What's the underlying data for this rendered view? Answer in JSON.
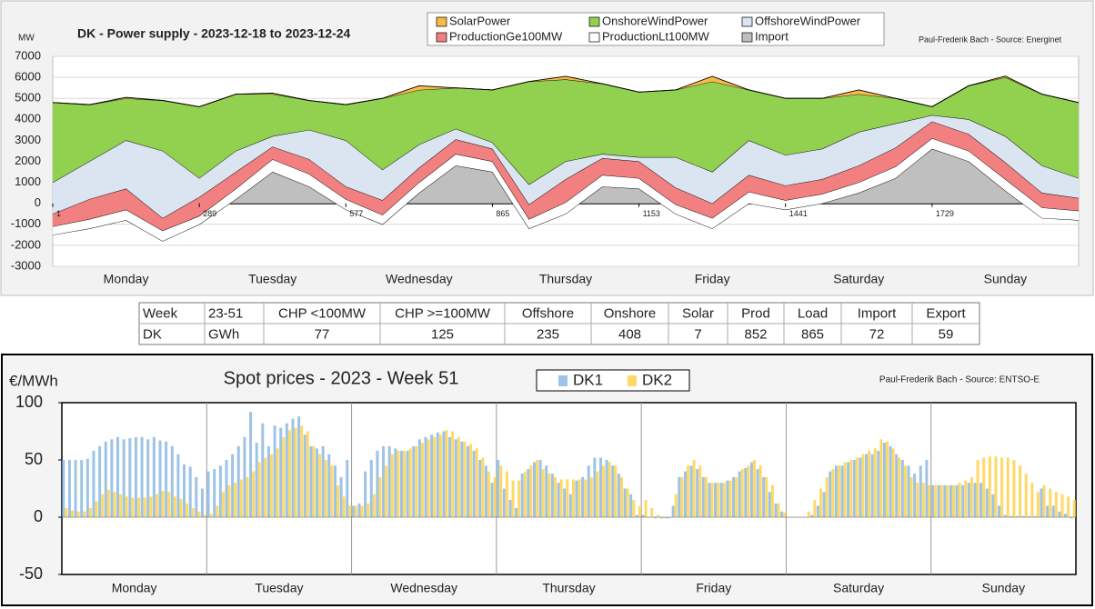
{
  "chart_data": [
    {
      "type": "area",
      "title": "DK - Power supply - 2023-12-18 to 2023-12-24",
      "source": "Paul-Frederik Bach - Source: Energinet",
      "y_label": "MW",
      "x": [
        1,
        73,
        145,
        217,
        289,
        361,
        433,
        505,
        577,
        649,
        721,
        793,
        865,
        937,
        1009,
        1081,
        1153,
        1225,
        1297,
        1369,
        1441,
        1513,
        1585,
        1657,
        1729,
        1801,
        1873,
        1945,
        2017
      ],
      "xlim": [
        1,
        2017
      ],
      "xticks": [
        1,
        289,
        577,
        865,
        1153,
        1441,
        1729
      ],
      "ylim": [
        -3000,
        7000
      ],
      "yticks": [
        -3000,
        -2000,
        -1000,
        0,
        1000,
        2000,
        3000,
        4000,
        5000,
        6000,
        7000
      ],
      "grid": true,
      "day_labels": [
        "Monday",
        "Tuesday",
        "Wednesday",
        "Thursday",
        "Friday",
        "Saturday",
        "Sunday"
      ],
      "series": [
        {
          "name": "SolarPower",
          "color": "#f6b94a",
          "values": [
            0,
            0,
            50,
            0,
            0,
            0,
            50,
            0,
            0,
            0,
            200,
            0,
            0,
            0,
            150,
            0,
            0,
            0,
            250,
            0,
            0,
            0,
            200,
            0,
            0,
            0,
            60,
            0,
            0
          ]
        },
        {
          "name": "OnshoreWindPower",
          "color": "#92d050",
          "values": [
            3800,
            2700,
            2000,
            2400,
            3400,
            2700,
            2000,
            1400,
            1700,
            3400,
            2600,
            1950,
            2500,
            4900,
            3900,
            3350,
            3100,
            3200,
            4300,
            2400,
            2700,
            2400,
            1800,
            1200,
            400,
            1600,
            2800,
            3400,
            3600
          ]
        },
        {
          "name": "OffshoreWindPower",
          "color": "#dae5f1",
          "values": [
            1500,
            1800,
            2300,
            3200,
            900,
            1000,
            500,
            1400,
            2200,
            1450,
            1100,
            500,
            300,
            950,
            850,
            200,
            200,
            1450,
            1500,
            1650,
            1450,
            1450,
            1600,
            1150,
            300,
            700,
            1250,
            1300,
            950
          ]
        },
        {
          "name": "ProductionGe100MW",
          "color": "#f28080",
          "values": [
            600,
            950,
            1000,
            600,
            900,
            800,
            600,
            700,
            600,
            700,
            700,
            700,
            600,
            700,
            1100,
            800,
            800,
            800,
            700,
            800,
            700,
            700,
            800,
            900,
            800,
            800,
            800,
            700,
            600
          ]
        },
        {
          "name": "ProductionLt100MW",
          "color": "#ffffff",
          "values": [
            400,
            450,
            500,
            500,
            400,
            500,
            600,
            600,
            500,
            450,
            500,
            550,
            500,
            450,
            550,
            550,
            500,
            450,
            500,
            550,
            450,
            450,
            500,
            550,
            500,
            500,
            550,
            500,
            450
          ]
        },
        {
          "name": "Import",
          "color": "#bfbfbf",
          "values": [
            -1500,
            -1200,
            -800,
            -1800,
            -1000,
            200,
            1500,
            800,
            -300,
            -1000,
            500,
            1800,
            1500,
            -1200,
            -500,
            800,
            700,
            -500,
            -1200,
            0,
            -300,
            0,
            500,
            1200,
            2600,
            2000,
            600,
            -700,
            -800
          ]
        }
      ]
    },
    {
      "type": "bar",
      "title": "Spot prices - 2023 - Week 51",
      "source": "Paul-Frederik Bach - Source: ENTSO-E",
      "y_label": "€/MWh",
      "categories": [
        "Monday",
        "Tuesday",
        "Wednesday",
        "Thursday",
        "Friday",
        "Saturday",
        "Sunday"
      ],
      "ylim": [
        -50,
        100
      ],
      "yticks": [
        -50,
        0,
        50,
        100
      ],
      "series": [
        {
          "name": "DK1",
          "color": "#9dc3e6",
          "values": [
            [
              50,
              50,
              50,
              50,
              51,
              58,
              62,
              66,
              68,
              70,
              68,
              69,
              70,
              70,
              68,
              70,
              67,
              66,
              62,
              55,
              46,
              44,
              35,
              25
            ],
            [
              40,
              42,
              45,
              50,
              55,
              62,
              70,
              92,
              65,
              82,
              62,
              80,
              78,
              82,
              86,
              88,
              72,
              62,
              60,
              62,
              55,
              45,
              35,
              50
            ],
            [
              10,
              12,
              40,
              50,
              58,
              62,
              62,
              60,
              58,
              58,
              62,
              68,
              70,
              72,
              74,
              75,
              70,
              68,
              66,
              62,
              58,
              50,
              45,
              30
            ],
            [
              50,
              25,
              15,
              8,
              38,
              42,
              48,
              50,
              45,
              38,
              30,
              25,
              20,
              32,
              35,
              45,
              52,
              52,
              50,
              45,
              38,
              25,
              20,
              2
            ],
            [
              2,
              0,
              -1,
              -1,
              -1,
              10,
              35,
              40,
              45,
              42,
              35,
              30,
              30,
              30,
              32,
              35,
              40,
              43,
              48,
              42,
              35,
              22,
              12,
              5
            ],
            [
              0,
              0,
              0,
              0,
              2,
              10,
              22,
              40,
              45,
              45,
              48,
              50,
              52,
              55,
              55,
              58,
              65,
              62,
              55,
              50,
              45,
              38,
              45,
              50
            ],
            [
              28,
              28,
              28,
              28,
              28,
              28,
              30,
              30,
              30,
              25,
              20,
              10,
              2,
              1,
              1,
              1,
              1,
              1,
              25,
              10,
              10,
              5,
              3,
              -1
            ]
          ]
        },
        {
          "name": "DK2",
          "color": "#ffd966",
          "values": [
            [
              8,
              6,
              5,
              5,
              8,
              14,
              20,
              24,
              22,
              20,
              18,
              17,
              17,
              17,
              18,
              20,
              23,
              22,
              18,
              16,
              12,
              8,
              5,
              2
            ],
            [
              3,
              10,
              22,
              28,
              30,
              33,
              35,
              40,
              48,
              52,
              55,
              60,
              70,
              76,
              78,
              80,
              75,
              62,
              55,
              50,
              45,
              28,
              18,
              10
            ],
            [
              10,
              10,
              12,
              20,
              35,
              45,
              55,
              58,
              58,
              60,
              62,
              65,
              68,
              70,
              72,
              76,
              75,
              70,
              66,
              64,
              60,
              52,
              40,
              35
            ],
            [
              45,
              40,
              32,
              32,
              40,
              45,
              50,
              42,
              38,
              35,
              33,
              33,
              33,
              33,
              33,
              35,
              40,
              45,
              48,
              45,
              35,
              25,
              15,
              10
            ],
            [
              15,
              8,
              2,
              -1,
              -1,
              20,
              35,
              45,
              50,
              45,
              35,
              30,
              30,
              30,
              32,
              35,
              42,
              45,
              50,
              45,
              35,
              28,
              12,
              4
            ],
            [
              0,
              0,
              0,
              5,
              15,
              25,
              35,
              42,
              45,
              48,
              50,
              52,
              55,
              58,
              60,
              68,
              66,
              60,
              52,
              45,
              35,
              30,
              30,
              28
            ],
            [
              28,
              28,
              28,
              28,
              30,
              32,
              35,
              50,
              52,
              53,
              53,
              52,
              52,
              50,
              45,
              38,
              30,
              22,
              28,
              25,
              22,
              20,
              18,
              15
            ]
          ]
        }
      ]
    }
  ],
  "table": {
    "rows": [
      [
        "Week",
        "23-51",
        "CHP <100MW",
        "CHP >=100MW",
        "Offshore",
        "Onshore",
        "Solar",
        "Prod",
        "Load",
        "Import",
        "Export"
      ],
      [
        "DK",
        "GWh",
        77,
        125,
        235,
        408,
        7,
        852,
        865,
        72,
        59
      ]
    ]
  }
}
